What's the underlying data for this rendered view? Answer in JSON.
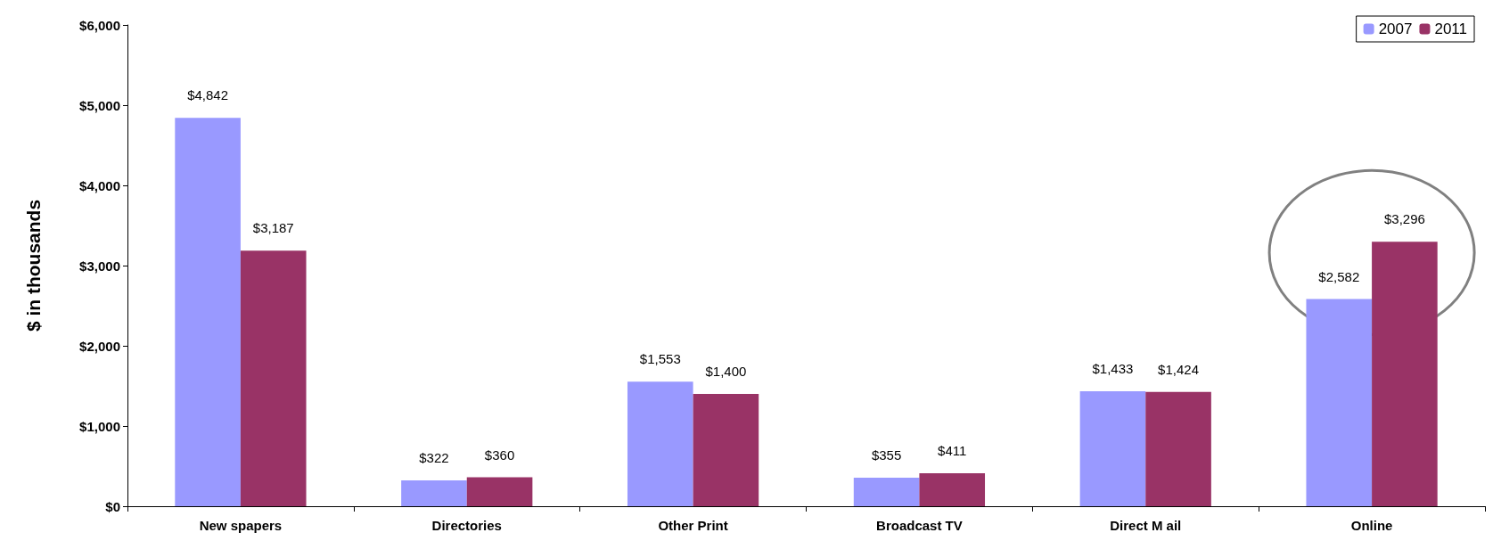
{
  "chart_data": {
    "type": "bar",
    "ylabel": "$ in thousands",
    "categories": [
      "New spapers",
      "Directories",
      "Other Print",
      "Broadcast TV",
      "Direct M ail",
      "Online"
    ],
    "series": [
      {
        "name": "2007",
        "color": "#9999ff",
        "values": [
          4842,
          322,
          1553,
          355,
          1433,
          2582
        ],
        "value_labels": [
          "$4,842",
          "$322",
          "$1,553",
          "$355",
          "$1,433",
          "$2,582"
        ]
      },
      {
        "name": "2011",
        "color": "#993366",
        "values": [
          3187,
          360,
          1400,
          411,
          1424,
          3296
        ],
        "value_labels": [
          "$3,187",
          "$360",
          "$1,400",
          "$411",
          "$1,424",
          "$3,296"
        ]
      }
    ],
    "ylim": [
      0,
      6000
    ],
    "yticks": [
      {
        "value": 0,
        "label": "$0"
      },
      {
        "value": 1000,
        "label": "$1,000"
      },
      {
        "value": 2000,
        "label": "$2,000"
      },
      {
        "value": 3000,
        "label": "$3,000"
      },
      {
        "value": 4000,
        "label": "$4,000"
      },
      {
        "value": 5000,
        "label": "$5,000"
      },
      {
        "value": 6000,
        "label": "$6,000"
      }
    ],
    "grid": false,
    "legend": "top right"
  }
}
